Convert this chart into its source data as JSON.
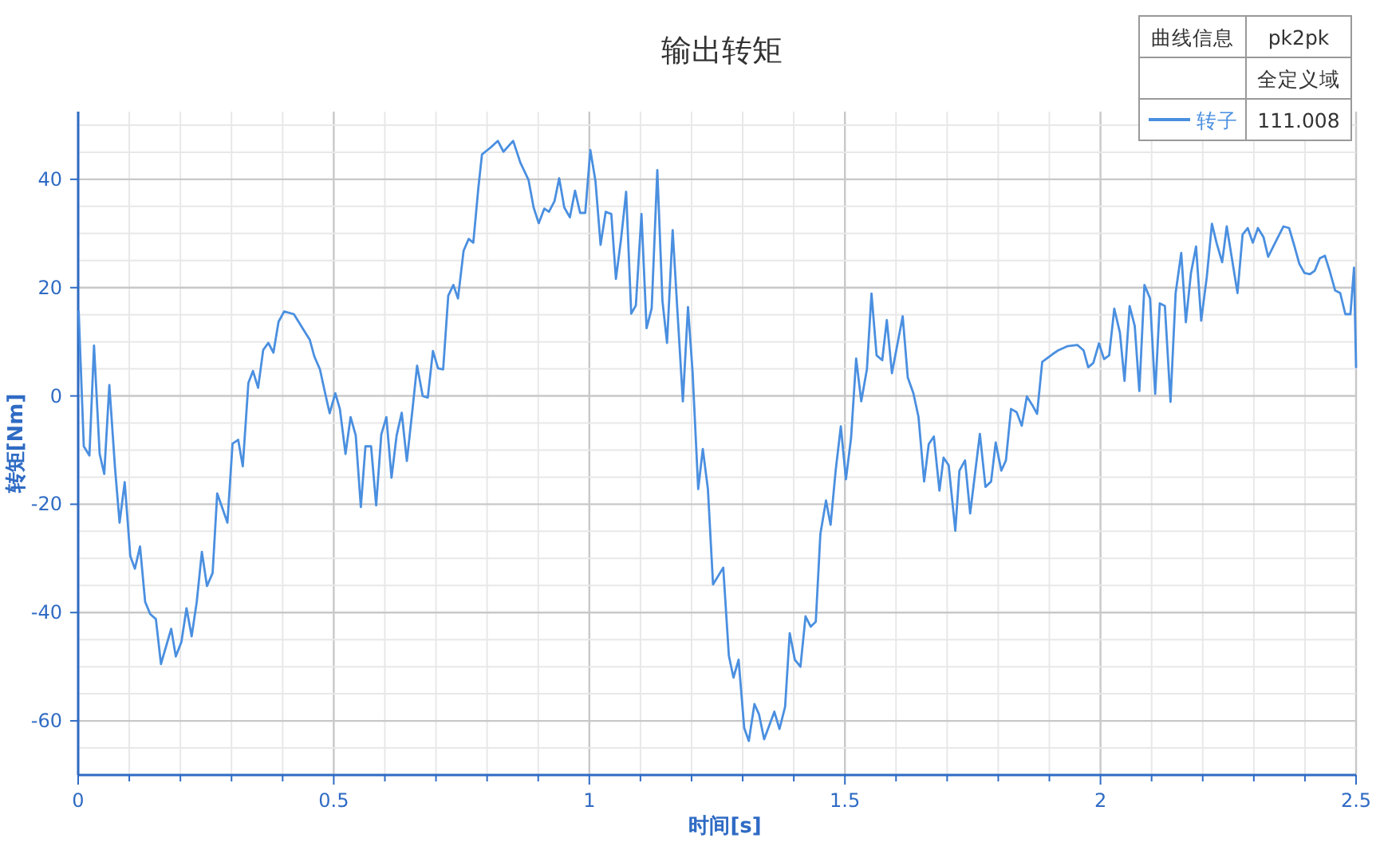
{
  "chart_data": {
    "type": "line",
    "title": "输出转矩",
    "xlabel": "时间[s]",
    "ylabel": "转矩[Nm]",
    "xlim": [
      0,
      2.5
    ],
    "ylim": [
      -70,
      52.5
    ],
    "xticks": [
      0,
      {
        "value": 0.1,
        "label": null
      },
      {
        "value": 0.2,
        "label": null
      },
      {
        "value": 0.3,
        "label": null
      },
      {
        "value": 0.4,
        "label": null
      },
      0.5,
      {
        "value": 0.6,
        "label": null
      },
      {
        "value": 0.7,
        "label": null
      },
      {
        "value": 0.8,
        "label": null
      },
      {
        "value": 0.9,
        "label": null
      },
      1,
      {
        "value": 1.1,
        "label": null
      },
      {
        "value": 1.2,
        "label": null
      },
      {
        "value": 1.3,
        "label": null
      },
      {
        "value": 1.4,
        "label": null
      },
      1.5,
      {
        "value": 1.6,
        "label": null
      },
      {
        "value": 1.7,
        "label": null
      },
      {
        "value": 1.8,
        "label": null
      },
      {
        "value": 1.9,
        "label": null
      },
      2,
      {
        "value": 2.1,
        "label": null
      },
      {
        "value": 2.2,
        "label": null
      },
      {
        "value": 2.3,
        "label": null
      },
      {
        "value": 2.4,
        "label": null
      },
      2.5
    ],
    "yticks": [
      {
        "value": -65,
        "label": null
      },
      -60,
      {
        "value": -55,
        "label": null
      },
      {
        "value": -50,
        "label": null
      },
      {
        "value": -45,
        "label": null
      },
      -40,
      {
        "value": -35,
        "label": null
      },
      {
        "value": -30,
        "label": null
      },
      {
        "value": -25,
        "label": null
      },
      -20,
      {
        "value": -15,
        "label": null
      },
      {
        "value": -10,
        "label": null
      },
      {
        "value": -5,
        "label": null
      },
      0,
      {
        "value": 5,
        "label": null
      },
      {
        "value": 10,
        "label": null
      },
      {
        "value": 15,
        "label": null
      },
      20,
      {
        "value": 25,
        "label": null
      },
      {
        "value": 30,
        "label": null
      },
      {
        "value": 35,
        "label": null
      },
      40,
      {
        "value": 45,
        "label": null
      },
      {
        "value": 50,
        "label": null
      }
    ],
    "grid": true,
    "legend": "top right",
    "marker": "none",
    "line_style": "solid",
    "annotations": [
      "曲线信息",
      "pk2pk",
      "全定义域",
      "111.008"
    ],
    "series": [
      {
        "name": "转子",
        "color": "#4a8fe0",
        "x": [
          0.001,
          0.011,
          0.022,
          0.031,
          0.042,
          0.051,
          0.061,
          0.072,
          0.081,
          0.091,
          0.102,
          0.111,
          0.121,
          0.131,
          0.141,
          0.152,
          0.162,
          0.182,
          0.191,
          0.202,
          0.212,
          0.222,
          0.232,
          0.242,
          0.252,
          0.263,
          0.272,
          0.292,
          0.302,
          0.313,
          0.322,
          0.333,
          0.342,
          0.352,
          0.362,
          0.372,
          0.382,
          0.392,
          0.403,
          0.422,
          0.441,
          0.453,
          0.462,
          0.473,
          0.482,
          0.492,
          0.503,
          0.512,
          0.523,
          0.533,
          0.543,
          0.553,
          0.562,
          0.573,
          0.583,
          0.593,
          0.603,
          0.613,
          0.623,
          0.633,
          0.643,
          0.653,
          0.663,
          0.674,
          0.684,
          0.694,
          0.704,
          0.714,
          0.724,
          0.734,
          0.743,
          0.754,
          0.764,
          0.773,
          0.783,
          0.79,
          0.806,
          0.821,
          0.832,
          0.851,
          0.865,
          0.881,
          0.891,
          0.901,
          0.912,
          0.921,
          0.932,
          0.941,
          0.951,
          0.962,
          0.972,
          0.982,
          0.992,
          1.002,
          1.012,
          1.022,
          1.032,
          1.043,
          1.052,
          1.062,
          1.072,
          1.082,
          1.091,
          1.102,
          1.112,
          1.122,
          1.133,
          1.143,
          1.152,
          1.163,
          1.172,
          1.183,
          1.193,
          1.202,
          1.213,
          1.222,
          1.232,
          1.242,
          1.262,
          1.273,
          1.282,
          1.292,
          1.303,
          1.312,
          1.323,
          1.332,
          1.342,
          1.362,
          1.372,
          1.383,
          1.392,
          1.402,
          1.413,
          1.423,
          1.433,
          1.443,
          1.452,
          1.463,
          1.472,
          1.482,
          1.492,
          1.502,
          1.512,
          1.522,
          1.532,
          1.543,
          1.552,
          1.562,
          1.573,
          1.582,
          1.592,
          1.613,
          1.623,
          1.634,
          1.644,
          1.655,
          1.664,
          1.674,
          1.685,
          1.693,
          1.703,
          1.716,
          1.724,
          1.735,
          1.745,
          1.764,
          1.775,
          1.786,
          1.795,
          1.806,
          1.815,
          1.825,
          1.836,
          1.846,
          1.856,
          1.866,
          1.876,
          1.886,
          1.906,
          1.917,
          1.936,
          1.955,
          1.967,
          1.976,
          1.986,
          1.997,
          2.007,
          2.017,
          2.027,
          2.038,
          2.047,
          2.057,
          2.067,
          2.076,
          2.086,
          2.097,
          2.107,
          2.116,
          2.126,
          2.137,
          2.147,
          2.158,
          2.167,
          2.177,
          2.187,
          2.197,
          2.208,
          2.218,
          2.227,
          2.238,
          2.247,
          2.268,
          2.278,
          2.288,
          2.298,
          2.308,
          2.319,
          2.328,
          2.339,
          2.358,
          2.369,
          2.379,
          2.389,
          2.399,
          2.41,
          2.419,
          2.429,
          2.439,
          2.449,
          2.459,
          2.469,
          2.479,
          2.489,
          2.496,
          2.5
        ],
        "values": [
          15.6,
          -9.3,
          -11,
          9.3,
          -10.7,
          -14.4,
          2,
          -13.2,
          -23.4,
          -15.9,
          -29.6,
          -31.9,
          -27.8,
          -38,
          -40.3,
          -41.2,
          -49.5,
          -43,
          -48.1,
          -45.4,
          -39.2,
          -44.4,
          -38,
          -28.8,
          -35.1,
          -32.7,
          -18,
          -23.4,
          -8.8,
          -8.1,
          -13,
          2.4,
          4.6,
          1.5,
          8.5,
          9.8,
          8,
          13.7,
          15.6,
          15.1,
          12.2,
          10.4,
          7.3,
          4.9,
          1,
          -3.2,
          0.5,
          -2.4,
          -10.7,
          -3.9,
          -7.3,
          -20.5,
          -9.3,
          -9.3,
          -20.2,
          -7.1,
          -3.9,
          -15.1,
          -7.3,
          -3.1,
          -12,
          -3.4,
          5.6,
          0,
          -0.3,
          8.3,
          5.1,
          4.9,
          18.5,
          20.5,
          18,
          26.8,
          29,
          28.3,
          38.5,
          44.6,
          45.8,
          47.1,
          45.1,
          47.1,
          43.1,
          39.9,
          34.8,
          31.9,
          34.6,
          34,
          36,
          40.2,
          34.8,
          33,
          37.9,
          33.8,
          33.8,
          45.4,
          39.7,
          27.9,
          34,
          33.6,
          21.6,
          28.9,
          37.7,
          15.2,
          16.7,
          33.6,
          12.5,
          16.2,
          41.7,
          17.6,
          9.8,
          30.6,
          16.2,
          -1,
          16.4,
          4.4,
          -17.2,
          -9.8,
          -17.2,
          -34.8,
          -31.7,
          -48,
          -52,
          -48.7,
          -61.3,
          -63.7,
          -56.9,
          -58.8,
          -63.4,
          -58.3,
          -61.5,
          -57.4,
          -43.8,
          -48.7,
          -50,
          -40.7,
          -42.6,
          -41.7,
          -25.5,
          -19.3,
          -23.8,
          -13.7,
          -5.6,
          -15.4,
          -7.8,
          6.9,
          -1,
          4.9,
          18.9,
          7.5,
          6.6,
          14,
          4.2,
          14.7,
          3.4,
          0.5,
          -3.9,
          -15.8,
          -8.9,
          -7.5,
          -17.5,
          -11.4,
          -12.8,
          -24.9,
          -13.8,
          -11.9,
          -21.7,
          -7,
          -16.8,
          -15.8,
          -8.6,
          -13.8,
          -11.9,
          -2.4,
          -3,
          -5.5,
          -0.1,
          -1.6,
          -3.3,
          6.3,
          7.7,
          8.4,
          9.2,
          9.4,
          8.4,
          5.3,
          6.1,
          9.7,
          6.8,
          7.5,
          16.1,
          11.7,
          2.8,
          16.6,
          12.9,
          0.9,
          20.5,
          18,
          0.4,
          17.1,
          16.6,
          -1.1,
          19,
          26.4,
          13.6,
          22.7,
          27.6,
          13.9,
          22,
          31.8,
          28.3,
          24.7,
          31.3,
          19,
          29.8,
          31,
          28.3,
          31,
          29.3,
          25.7,
          27.8,
          31.3,
          31,
          27.8,
          24.4,
          22.7,
          22.5,
          23.1,
          25.4,
          25.9,
          22.9,
          19.5,
          19,
          15.1,
          15.1,
          23.7,
          5.3
        ]
      }
    ]
  }
}
